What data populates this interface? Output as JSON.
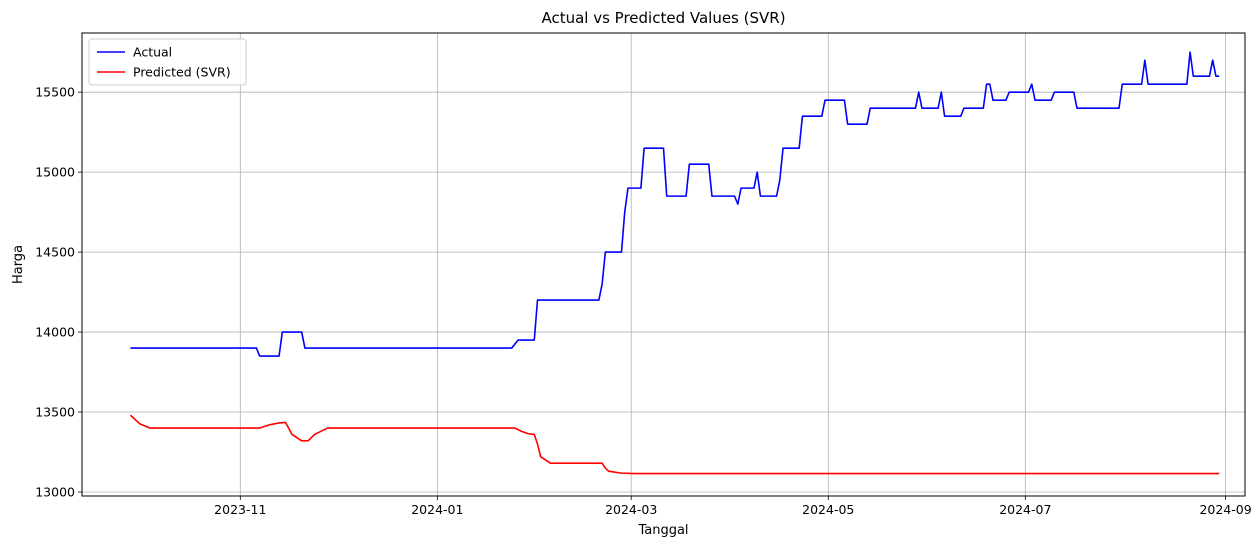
{
  "chart_data": {
    "type": "line",
    "title": "Actual vs Predicted Values (SVR)",
    "xlabel": "Tanggal",
    "ylabel": "Harga",
    "xlim": [
      "2023-09-13",
      "2024-09-07"
    ],
    "ylim": [
      12975,
      15870
    ],
    "grid": true,
    "legend_position": "top-left",
    "x_ticks": [
      "2023-11",
      "2024-01",
      "2024-03",
      "2024-05",
      "2024-07",
      "2024-09"
    ],
    "y_ticks": [
      13000,
      13500,
      14000,
      14500,
      15000,
      15500
    ],
    "series": [
      {
        "name": "Actual",
        "color": "#0000ff",
        "points": [
          [
            "2023-09-28",
            13900
          ],
          [
            "2023-11-06",
            13900
          ],
          [
            "2023-11-07",
            13850
          ],
          [
            "2023-11-13",
            13850
          ],
          [
            "2023-11-14",
            14000
          ],
          [
            "2023-11-20",
            14000
          ],
          [
            "2023-11-21",
            13900
          ],
          [
            "2024-01-24",
            13900
          ],
          [
            "2024-01-26",
            13950
          ],
          [
            "2024-01-31",
            13950
          ],
          [
            "2024-02-01",
            14200
          ],
          [
            "2024-02-20",
            14200
          ],
          [
            "2024-02-21",
            14300
          ],
          [
            "2024-02-22",
            14500
          ],
          [
            "2024-02-27",
            14500
          ],
          [
            "2024-02-28",
            14750
          ],
          [
            "2024-02-29",
            14900
          ],
          [
            "2024-03-04",
            14900
          ],
          [
            "2024-03-05",
            15150
          ],
          [
            "2024-03-11",
            15150
          ],
          [
            "2024-03-12",
            14850
          ],
          [
            "2024-03-18",
            14850
          ],
          [
            "2024-03-19",
            15050
          ],
          [
            "2024-03-25",
            15050
          ],
          [
            "2024-03-26",
            14850
          ],
          [
            "2024-04-02",
            14850
          ],
          [
            "2024-04-03",
            14800
          ],
          [
            "2024-04-04",
            14900
          ],
          [
            "2024-04-08",
            14900
          ],
          [
            "2024-04-09",
            15000
          ],
          [
            "2024-04-10",
            14850
          ],
          [
            "2024-04-15",
            14850
          ],
          [
            "2024-04-16",
            14950
          ],
          [
            "2024-04-17",
            15150
          ],
          [
            "2024-04-22",
            15150
          ],
          [
            "2024-04-23",
            15350
          ],
          [
            "2024-04-29",
            15350
          ],
          [
            "2024-04-30",
            15450
          ],
          [
            "2024-05-06",
            15450
          ],
          [
            "2024-05-07",
            15300
          ],
          [
            "2024-05-13",
            15300
          ],
          [
            "2024-05-14",
            15400
          ],
          [
            "2024-05-28",
            15400
          ],
          [
            "2024-05-29",
            15500
          ],
          [
            "2024-05-30",
            15400
          ],
          [
            "2024-06-04",
            15400
          ],
          [
            "2024-06-05",
            15500
          ],
          [
            "2024-06-06",
            15350
          ],
          [
            "2024-06-11",
            15350
          ],
          [
            "2024-06-12",
            15400
          ],
          [
            "2024-06-18",
            15400
          ],
          [
            "2024-06-19",
            15550
          ],
          [
            "2024-06-20",
            15550
          ],
          [
            "2024-06-21",
            15450
          ],
          [
            "2024-06-25",
            15450
          ],
          [
            "2024-06-26",
            15500
          ],
          [
            "2024-07-02",
            15500
          ],
          [
            "2024-07-03",
            15550
          ],
          [
            "2024-07-04",
            15450
          ],
          [
            "2024-07-09",
            15450
          ],
          [
            "2024-07-10",
            15500
          ],
          [
            "2024-07-16",
            15500
          ],
          [
            "2024-07-17",
            15400
          ],
          [
            "2024-07-30",
            15400
          ],
          [
            "2024-07-31",
            15550
          ],
          [
            "2024-08-06",
            15550
          ],
          [
            "2024-08-07",
            15700
          ],
          [
            "2024-08-08",
            15550
          ],
          [
            "2024-08-20",
            15550
          ],
          [
            "2024-08-21",
            15750
          ],
          [
            "2024-08-22",
            15600
          ],
          [
            "2024-08-27",
            15600
          ],
          [
            "2024-08-28",
            15700
          ],
          [
            "2024-08-29",
            15600
          ],
          [
            "2024-08-30",
            15600
          ]
        ]
      },
      {
        "name": "Predicted (SVR)",
        "color": "#ff0000",
        "points": [
          [
            "2023-09-28",
            13480
          ],
          [
            "2023-10-01",
            13425
          ],
          [
            "2023-10-04",
            13400
          ],
          [
            "2023-11-07",
            13400
          ],
          [
            "2023-11-10",
            13420
          ],
          [
            "2023-11-13",
            13432
          ],
          [
            "2023-11-15",
            13435
          ],
          [
            "2023-11-17",
            13360
          ],
          [
            "2023-11-20",
            13320
          ],
          [
            "2023-11-22",
            13320
          ],
          [
            "2023-11-24",
            13360
          ],
          [
            "2023-11-28",
            13400
          ],
          [
            "2024-01-25",
            13400
          ],
          [
            "2024-01-27",
            13380
          ],
          [
            "2024-01-29",
            13365
          ],
          [
            "2024-01-31",
            13360
          ],
          [
            "2024-02-01",
            13300
          ],
          [
            "2024-02-02",
            13220
          ],
          [
            "2024-02-05",
            13180
          ],
          [
            "2024-02-21",
            13180
          ],
          [
            "2024-02-22",
            13150
          ],
          [
            "2024-02-23",
            13130
          ],
          [
            "2024-02-27",
            13118
          ],
          [
            "2024-03-02",
            13115
          ],
          [
            "2024-08-30",
            13115
          ]
        ]
      }
    ]
  }
}
